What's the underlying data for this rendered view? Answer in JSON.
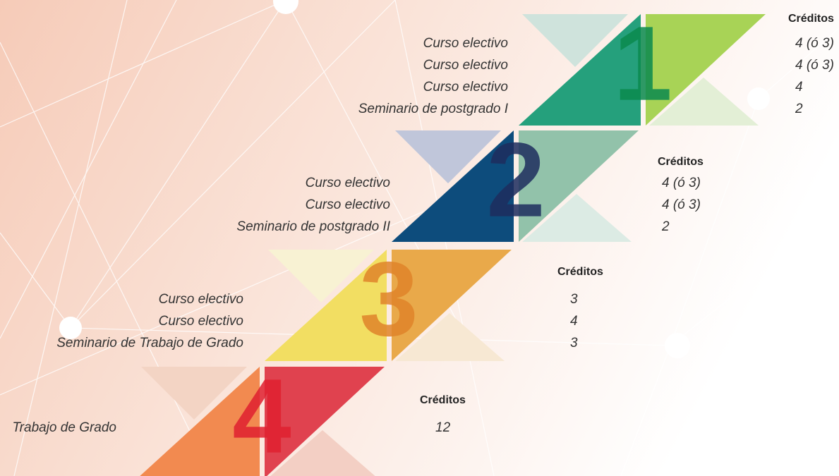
{
  "semesters": [
    {
      "number": "1",
      "courses": [
        "Curso electivo",
        "Curso electivo",
        "Curso electivo",
        "Seminario de postgrado I"
      ],
      "credits_label": "Créditos",
      "credits": [
        "4 (ó 3)",
        "4 (ó 3)",
        "4",
        "2"
      ]
    },
    {
      "number": "2",
      "courses": [
        "Curso electivo",
        "Curso electivo",
        "Seminario de postgrado II"
      ],
      "credits_label": "Créditos",
      "credits": [
        "4 (ó 3)",
        "4 (ó 3)",
        "2"
      ]
    },
    {
      "number": "3",
      "courses": [
        "Curso electivo",
        "Curso electivo",
        "Seminario de Trabajo de Grado"
      ],
      "credits_label": "Créditos",
      "credits": [
        "3",
        "4",
        "3"
      ]
    },
    {
      "number": "4",
      "courses": [
        "Trabajo de Grado"
      ],
      "credits_label": "Créditos",
      "credits": [
        "12"
      ]
    }
  ]
}
